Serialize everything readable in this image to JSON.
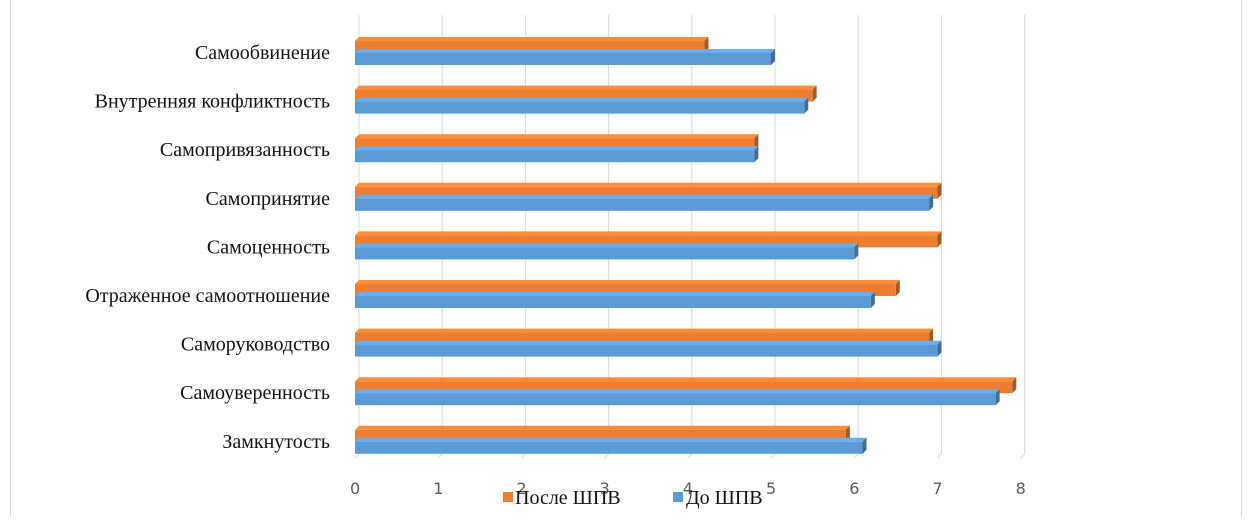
{
  "chart_data": {
    "type": "bar",
    "orientation": "horizontal",
    "categories": [
      "Самообвинение",
      "Внутренняя конфликтность",
      "Самопривязанность",
      "Самопринятие",
      "Самоценность",
      "Отраженное самоотношение",
      "Саморуководство",
      "Самоуверенность",
      "Замкнутость"
    ],
    "series": [
      {
        "name": "После ШПВ",
        "color": "#ED7D31",
        "values": [
          4.2,
          5.5,
          4.8,
          7.0,
          7.0,
          6.5,
          6.9,
          7.9,
          5.9
        ]
      },
      {
        "name": "До ШПВ",
        "color": "#5B9BD5",
        "values": [
          5.0,
          5.4,
          4.8,
          6.9,
          6.0,
          6.2,
          7.0,
          7.7,
          6.1
        ]
      }
    ],
    "xlim": [
      0,
      8
    ],
    "x_ticks": [
      "0",
      "1",
      "2",
      "3",
      "4",
      "5",
      "6",
      "7",
      "8"
    ],
    "grid": true,
    "legend_position": "bottom",
    "title": "",
    "xlabel": "",
    "ylabel": ""
  }
}
